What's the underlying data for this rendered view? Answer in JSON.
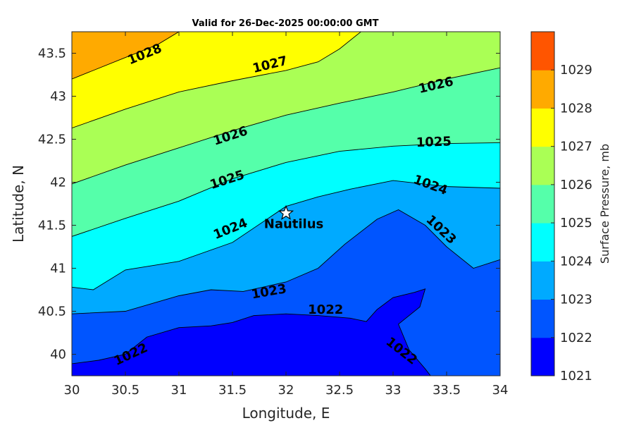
{
  "chart_data": {
    "type": "contour",
    "title": "Valid for 26-Dec-2025 00:00:00 GMT",
    "xlabel": "Longitude, E",
    "ylabel": "Latitude, N",
    "xlim": [
      30,
      34
    ],
    "ylim": [
      39.75,
      43.75
    ],
    "x_ticks": [
      "30",
      "30.5",
      "31",
      "31.5",
      "32",
      "32.5",
      "33",
      "33.5",
      "34"
    ],
    "y_ticks": [
      "40",
      "40.5",
      "41",
      "41.5",
      "42",
      "42.5",
      "43",
      "43.5"
    ],
    "colorbar": {
      "label": "Surface Pressure, mb",
      "levels": [
        1021,
        1022,
        1023,
        1024,
        1025,
        1026,
        1027,
        1028,
        1029
      ],
      "tick_labels": [
        "1021",
        "1022",
        "1023",
        "1024",
        "1025",
        "1026",
        "1027",
        "1028",
        "1029"
      ],
      "colors": [
        "#0000ff",
        "#0055ff",
        "#00aaff",
        "#00ffff",
        "#55ffaa",
        "#aaff55",
        "#ffff00",
        "#ffaa00",
        "#ff5500"
      ]
    },
    "contour_lines": [
      {
        "level": "1022",
        "points": [
          [
            30,
            39.89
          ],
          [
            30.25,
            39.93
          ],
          [
            30.5,
            40.0
          ],
          [
            30.7,
            40.2
          ],
          [
            31.0,
            40.31
          ],
          [
            31.3,
            40.33
          ],
          [
            31.5,
            40.37
          ],
          [
            31.7,
            40.45
          ],
          [
            32.0,
            40.47
          ],
          [
            32.3,
            40.45
          ],
          [
            32.6,
            40.42
          ],
          [
            32.75,
            40.38
          ],
          [
            32.85,
            40.52
          ],
          [
            33.0,
            40.66
          ],
          [
            33.2,
            40.72
          ],
          [
            33.3,
            40.76
          ],
          [
            33.25,
            40.55
          ],
          [
            33.05,
            40.35
          ],
          [
            33.15,
            40.05
          ],
          [
            33.3,
            39.83
          ],
          [
            33.35,
            39.75
          ]
        ]
      },
      {
        "level": "1023",
        "points": [
          [
            30,
            40.47
          ],
          [
            30.5,
            40.5
          ],
          [
            31.0,
            40.68
          ],
          [
            31.3,
            40.75
          ],
          [
            31.6,
            40.73
          ],
          [
            32.0,
            40.84
          ],
          [
            32.3,
            41.0
          ],
          [
            32.55,
            41.28
          ],
          [
            32.85,
            41.57
          ],
          [
            33.05,
            41.68
          ],
          [
            33.3,
            41.5
          ],
          [
            33.5,
            41.25
          ],
          [
            33.75,
            41.0
          ],
          [
            34,
            41.1
          ]
        ]
      },
      {
        "level": "1024",
        "points": [
          [
            30,
            40.78
          ],
          [
            30.2,
            40.75
          ],
          [
            30.5,
            40.98
          ],
          [
            31.0,
            41.08
          ],
          [
            31.5,
            41.3
          ],
          [
            32.0,
            41.72
          ],
          [
            32.3,
            41.83
          ],
          [
            32.6,
            41.92
          ],
          [
            33.0,
            42.02
          ],
          [
            33.5,
            41.95
          ],
          [
            34,
            41.93
          ]
        ]
      },
      {
        "level": "1025",
        "points": [
          [
            30,
            41.37
          ],
          [
            30.5,
            41.58
          ],
          [
            31.0,
            41.78
          ],
          [
            31.5,
            42.04
          ],
          [
            32.0,
            42.23
          ],
          [
            32.5,
            42.36
          ],
          [
            33.0,
            42.42
          ],
          [
            33.5,
            42.45
          ],
          [
            34,
            42.46
          ]
        ]
      },
      {
        "level": "1026",
        "points": [
          [
            30,
            41.98
          ],
          [
            30.5,
            42.2
          ],
          [
            31.0,
            42.4
          ],
          [
            31.5,
            42.6
          ],
          [
            32.0,
            42.78
          ],
          [
            32.5,
            42.92
          ],
          [
            33.0,
            43.05
          ],
          [
            33.5,
            43.2
          ],
          [
            34,
            43.33
          ]
        ]
      },
      {
        "level": "1027",
        "points": [
          [
            30,
            42.63
          ],
          [
            30.5,
            42.85
          ],
          [
            31.0,
            43.05
          ],
          [
            31.5,
            43.18
          ],
          [
            32.0,
            43.3
          ],
          [
            32.3,
            43.4
          ],
          [
            32.5,
            43.55
          ],
          [
            32.7,
            43.75
          ]
        ]
      },
      {
        "level": "1028",
        "points": [
          [
            30,
            43.2
          ],
          [
            30.5,
            43.45
          ],
          [
            30.8,
            43.6
          ],
          [
            31.0,
            43.75
          ]
        ]
      }
    ],
    "contour_labels": [
      {
        "text": "1028",
        "x": 30.68,
        "y": 43.49,
        "angle": -22
      },
      {
        "text": "1027",
        "x": 31.85,
        "y": 43.37,
        "angle": -14
      },
      {
        "text": "1026",
        "x": 33.4,
        "y": 43.13,
        "angle": -13
      },
      {
        "text": "1026",
        "x": 31.48,
        "y": 42.54,
        "angle": -18
      },
      {
        "text": "1025",
        "x": 33.38,
        "y": 42.47,
        "angle": -2
      },
      {
        "text": "1025",
        "x": 31.45,
        "y": 42.03,
        "angle": -18
      },
      {
        "text": "1024",
        "x": 33.35,
        "y": 41.97,
        "angle": 20
      },
      {
        "text": "1024",
        "x": 31.48,
        "y": 41.46,
        "angle": -22
      },
      {
        "text": "1023",
        "x": 33.45,
        "y": 41.45,
        "angle": 43
      },
      {
        "text": "1023",
        "x": 31.84,
        "y": 40.73,
        "angle": -10
      },
      {
        "text": "1022",
        "x": 32.37,
        "y": 40.52,
        "angle": 0
      },
      {
        "text": "1022",
        "x": 33.08,
        "y": 40.04,
        "angle": 38
      },
      {
        "text": "1022",
        "x": 30.55,
        "y": 40.0,
        "angle": -25
      }
    ],
    "markers": [
      {
        "label": "Nautilus",
        "x": 32.0,
        "y": 41.64,
        "symbol": "star"
      }
    ]
  }
}
